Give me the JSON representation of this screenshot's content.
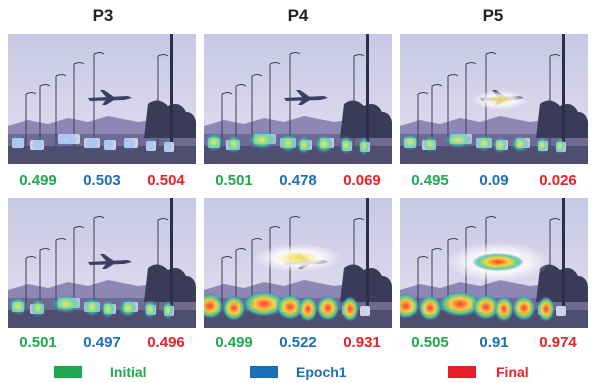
{
  "columns": [
    "P3",
    "P4",
    "P5"
  ],
  "rows": [
    {
      "scores": [
        {
          "initial": "0.499",
          "epoch1": "0.503",
          "final": "0.504"
        },
        {
          "initial": "0.501",
          "epoch1": "0.478",
          "final": "0.069"
        },
        {
          "initial": "0.495",
          "epoch1": "0.09",
          "final": "0.026"
        }
      ]
    },
    {
      "scores": [
        {
          "initial": "0.501",
          "epoch1": "0.497",
          "final": "0.496"
        },
        {
          "initial": "0.499",
          "epoch1": "0.522",
          "final": "0.931"
        },
        {
          "initial": "0.505",
          "epoch1": "0.91",
          "final": "0.974"
        }
      ]
    }
  ],
  "legend": [
    {
      "label": "Initial",
      "color": "#1fa84f"
    },
    {
      "label": "Epoch1",
      "color": "#1b6fb8"
    },
    {
      "label": "Final",
      "color": "#e8202a"
    }
  ],
  "heatmaps": [
    [
      "cars-faint",
      "cars-medium",
      "plane-cars-faint"
    ],
    [
      "cars-medium",
      "plane-cars-strong",
      "plane-strong-cars"
    ]
  ]
}
